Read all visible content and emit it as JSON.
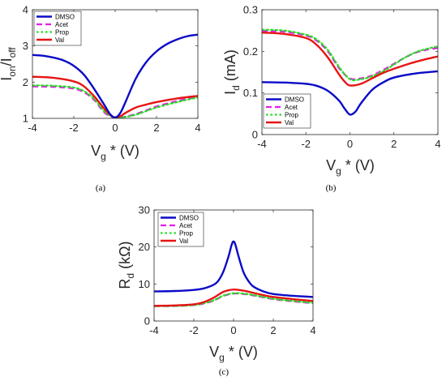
{
  "colors": {
    "DMSO": "#0a0ac8",
    "Acet": "#e61ee6",
    "Prop": "#28dc28",
    "Val": "#e61414"
  },
  "chart_data": [
    {
      "type": "line",
      "caption": "(a)",
      "ylabel": "I_on/I_off",
      "xlabel": "V_g * (V)",
      "xlim": [
        -4,
        4
      ],
      "ylim": [
        1,
        4
      ],
      "xticks": [
        "-4",
        "-2",
        "0",
        "2",
        "4"
      ],
      "yticks": [
        "1",
        "2",
        "3",
        "4"
      ],
      "legend_placement": "top-left",
      "series": [
        {
          "name": "DMSO",
          "x": [
            -4,
            -3.5,
            -3,
            -2.5,
            -2,
            -1.5,
            -1,
            -0.5,
            -0.25,
            0,
            0.25,
            0.5,
            1,
            1.5,
            2,
            2.5,
            3,
            3.5,
            4
          ],
          "y": [
            2.75,
            2.73,
            2.68,
            2.6,
            2.45,
            2.2,
            1.8,
            1.35,
            1.12,
            1.02,
            1.15,
            1.45,
            2.1,
            2.55,
            2.85,
            3.05,
            3.18,
            3.27,
            3.31
          ]
        },
        {
          "name": "Acet",
          "x": [
            -4,
            -3,
            -2,
            -1.5,
            -1,
            -0.5,
            0,
            0.5,
            1,
            1.5,
            2,
            3,
            4
          ],
          "y": [
            1.88,
            1.87,
            1.82,
            1.72,
            1.5,
            1.15,
            1.02,
            1.05,
            1.12,
            1.22,
            1.33,
            1.48,
            1.6
          ]
        },
        {
          "name": "Prop",
          "x": [
            -4,
            -3,
            -2,
            -1.5,
            -1,
            -0.5,
            0,
            0.5,
            1,
            1.5,
            2,
            3,
            4
          ],
          "y": [
            1.91,
            1.9,
            1.85,
            1.75,
            1.53,
            1.18,
            1.02,
            1.04,
            1.1,
            1.2,
            1.3,
            1.45,
            1.58
          ]
        },
        {
          "name": "Val",
          "x": [
            -4,
            -3,
            -2,
            -1.5,
            -1,
            -0.5,
            -0.25,
            0,
            0.25,
            0.5,
            1,
            1.5,
            2,
            3,
            4
          ],
          "y": [
            2.15,
            2.12,
            2.02,
            1.88,
            1.6,
            1.25,
            1.1,
            1.02,
            1.06,
            1.15,
            1.3,
            1.38,
            1.45,
            1.55,
            1.62
          ]
        }
      ]
    },
    {
      "type": "line",
      "caption": "(b)",
      "ylabel": "I_d (mA)",
      "xlabel": "V_g * (V)",
      "xlim": [
        -4,
        4
      ],
      "ylim": [
        0,
        0.3
      ],
      "xticks": [
        "-4",
        "-2",
        "0",
        "2",
        "4"
      ],
      "yticks": [
        "0",
        "0.1",
        "0.2",
        "0.3"
      ],
      "legend_placement": "bottom-left",
      "series": [
        {
          "name": "DMSO",
          "x": [
            -4,
            -3,
            -2,
            -1.5,
            -1,
            -0.5,
            -0.25,
            0,
            0.25,
            0.5,
            1,
            1.5,
            2,
            3,
            4
          ],
          "y": [
            0.126,
            0.125,
            0.122,
            0.117,
            0.105,
            0.082,
            0.063,
            0.048,
            0.055,
            0.075,
            0.107,
            0.125,
            0.137,
            0.147,
            0.152
          ]
        },
        {
          "name": "Acet",
          "x": [
            -4,
            -3,
            -2,
            -1.5,
            -1,
            -0.5,
            0,
            0.5,
            1,
            1.5,
            2,
            2.5,
            3,
            3.5,
            4
          ],
          "y": [
            0.249,
            0.247,
            0.238,
            0.225,
            0.2,
            0.16,
            0.135,
            0.135,
            0.142,
            0.155,
            0.17,
            0.185,
            0.197,
            0.204,
            0.208
          ]
        },
        {
          "name": "Prop",
          "x": [
            -4,
            -3,
            -2,
            -1.5,
            -1,
            -0.5,
            0,
            0.5,
            1,
            1.5,
            2,
            2.5,
            3,
            3.5,
            4
          ],
          "y": [
            0.252,
            0.25,
            0.24,
            0.228,
            0.203,
            0.163,
            0.133,
            0.133,
            0.14,
            0.152,
            0.168,
            0.185,
            0.198,
            0.206,
            0.212
          ]
        },
        {
          "name": "Val",
          "x": [
            -4,
            -3,
            -2,
            -1.5,
            -1,
            -0.5,
            -0.25,
            0,
            0.5,
            1,
            1.5,
            2,
            3,
            4
          ],
          "y": [
            0.245,
            0.242,
            0.232,
            0.215,
            0.185,
            0.145,
            0.128,
            0.118,
            0.122,
            0.135,
            0.148,
            0.158,
            0.175,
            0.188
          ]
        }
      ]
    },
    {
      "type": "line",
      "caption": "(c)",
      "ylabel": "R_d (kΩ)",
      "xlabel": "V_g * (V)",
      "xlim": [
        -4,
        4
      ],
      "ylim": [
        0,
        30
      ],
      "xticks": [
        "-4",
        "-2",
        "0",
        "2",
        "4"
      ],
      "yticks": [
        "0",
        "10",
        "20",
        "30"
      ],
      "legend_placement": "top-right",
      "series": [
        {
          "name": "DMSO",
          "x": [
            -4,
            -3,
            -2,
            -1.5,
            -1,
            -0.75,
            -0.5,
            -0.25,
            -0.1,
            0,
            0.1,
            0.25,
            0.5,
            0.75,
            1,
            1.5,
            2,
            3,
            4
          ],
          "y": [
            8,
            8.1,
            8.4,
            8.8,
            9.8,
            11,
            13.5,
            17.5,
            20.5,
            21.5,
            20.5,
            17.5,
            13.2,
            10.8,
            9.3,
            8,
            7.3,
            6.8,
            6.5
          ]
        },
        {
          "name": "Acet",
          "x": [
            -4,
            -3,
            -2,
            -1.5,
            -1,
            -0.5,
            0,
            0.5,
            1,
            1.5,
            2,
            3,
            4
          ],
          "y": [
            4,
            4.05,
            4.3,
            4.7,
            5.5,
            6.8,
            7.4,
            7.3,
            6.9,
            6.4,
            5.9,
            5.3,
            4.8
          ]
        },
        {
          "name": "Prop",
          "x": [
            -4,
            -3,
            -2,
            -1.5,
            -1,
            -0.5,
            0,
            0.5,
            1,
            1.5,
            2,
            3,
            4
          ],
          "y": [
            4,
            4.05,
            4.3,
            4.8,
            5.6,
            6.9,
            7.5,
            7.4,
            7,
            6.5,
            6,
            5.4,
            4.9
          ]
        },
        {
          "name": "Val",
          "x": [
            -4,
            -3,
            -2,
            -1.5,
            -1,
            -0.5,
            0,
            0.5,
            1,
            1.5,
            2,
            3,
            4
          ],
          "y": [
            4.1,
            4.2,
            4.5,
            5.1,
            6.3,
            7.9,
            8.5,
            8.2,
            7.6,
            7,
            6.5,
            5.9,
            5.4
          ]
        }
      ]
    }
  ]
}
